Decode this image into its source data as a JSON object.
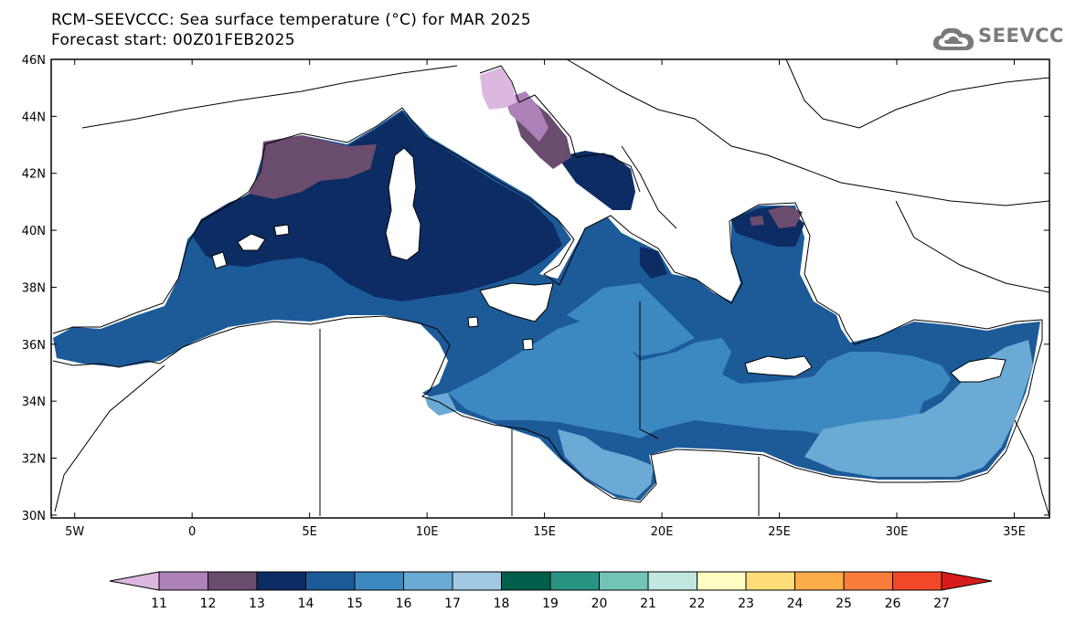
{
  "title": {
    "line1": "RCM–SEEVCCC: Sea surface temperature (°C) for MAR 2025",
    "line2": "Forecast start: 00Z01FEB2025"
  },
  "logo": {
    "text": "SEEVCCC",
    "icon": "cloud-icon"
  },
  "map": {
    "projection": "lat-lon",
    "lon_range": [
      -6,
      36.5
    ],
    "lat_range": [
      29.9,
      46
    ],
    "lat_labels": [
      "46N",
      "44N",
      "42N",
      "40N",
      "38N",
      "36N",
      "34N",
      "32N",
      "30N"
    ],
    "lat_values": [
      46,
      44,
      42,
      40,
      38,
      36,
      34,
      32,
      30
    ],
    "lon_labels": [
      "5W",
      "0",
      "5E",
      "10E",
      "15E",
      "20E",
      "25E",
      "30E",
      "35E"
    ],
    "lon_values": [
      -5,
      0,
      5,
      10,
      15,
      20,
      25,
      30,
      35
    ]
  },
  "colorbar": {
    "labels": [
      "11",
      "12",
      "13",
      "14",
      "15",
      "16",
      "17",
      "18",
      "19",
      "20",
      "21",
      "22",
      "23",
      "24",
      "25",
      "26",
      "27"
    ],
    "colors": [
      "#dcb8e0",
      "#ac82b8",
      "#6a4c6e",
      "#0c2c63",
      "#1c5a98",
      "#3c88c0",
      "#6aaad4",
      "#a0c8e2",
      "#00604c",
      "#2a9484",
      "#72c4b6",
      "#c0e8e0",
      "#fefcc0",
      "#fedc78",
      "#fcac48",
      "#f87c3c",
      "#f04828",
      "#d81c1c"
    ]
  }
}
